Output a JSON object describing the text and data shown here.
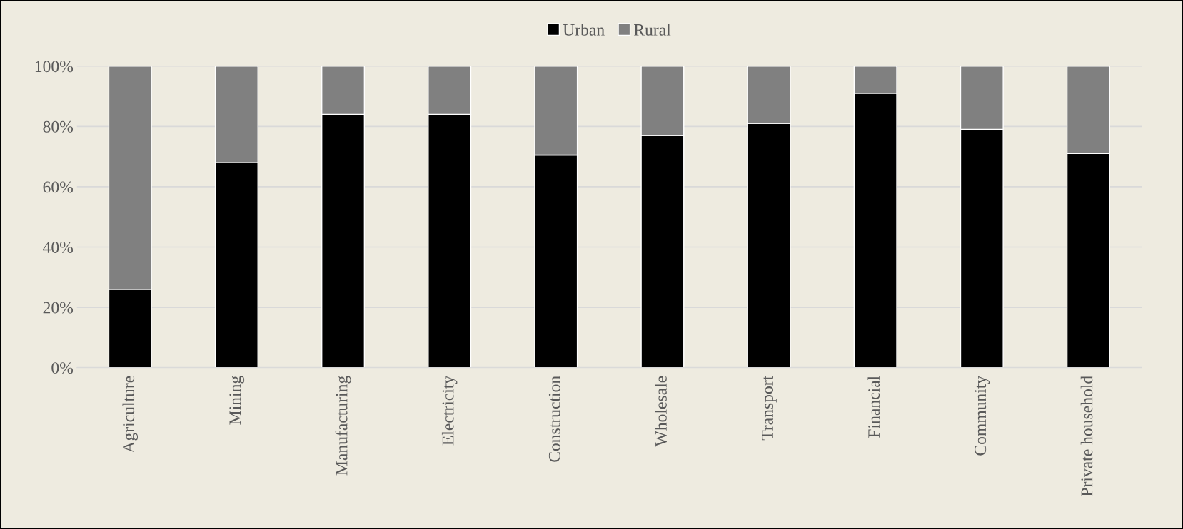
{
  "chart_data": {
    "type": "bar",
    "stacked": true,
    "categories": [
      "Agriculture",
      "Mining",
      "Manufacturing",
      "Electricity",
      "Construction",
      "Wholesale",
      "Transport",
      "Financial",
      "Community",
      "Private household"
    ],
    "series": [
      {
        "name": "Urban",
        "color": "#000000",
        "values": [
          26,
          68,
          84,
          84,
          70.5,
          77,
          81,
          91,
          79,
          71
        ]
      },
      {
        "name": "Rural",
        "color": "#808080",
        "values": [
          74,
          32,
          16,
          16,
          29.5,
          23,
          19,
          9,
          21,
          29
        ]
      }
    ],
    "ylim": [
      0,
      100
    ],
    "yticks": [
      {
        "value": 0,
        "label": "0%"
      },
      {
        "value": 20,
        "label": "20%"
      },
      {
        "value": 40,
        "label": "40%"
      },
      {
        "value": 60,
        "label": "60%"
      },
      {
        "value": 80,
        "label": "80%"
      },
      {
        "value": 100,
        "label": "100%"
      }
    ],
    "grid": "y",
    "legend": "top"
  }
}
